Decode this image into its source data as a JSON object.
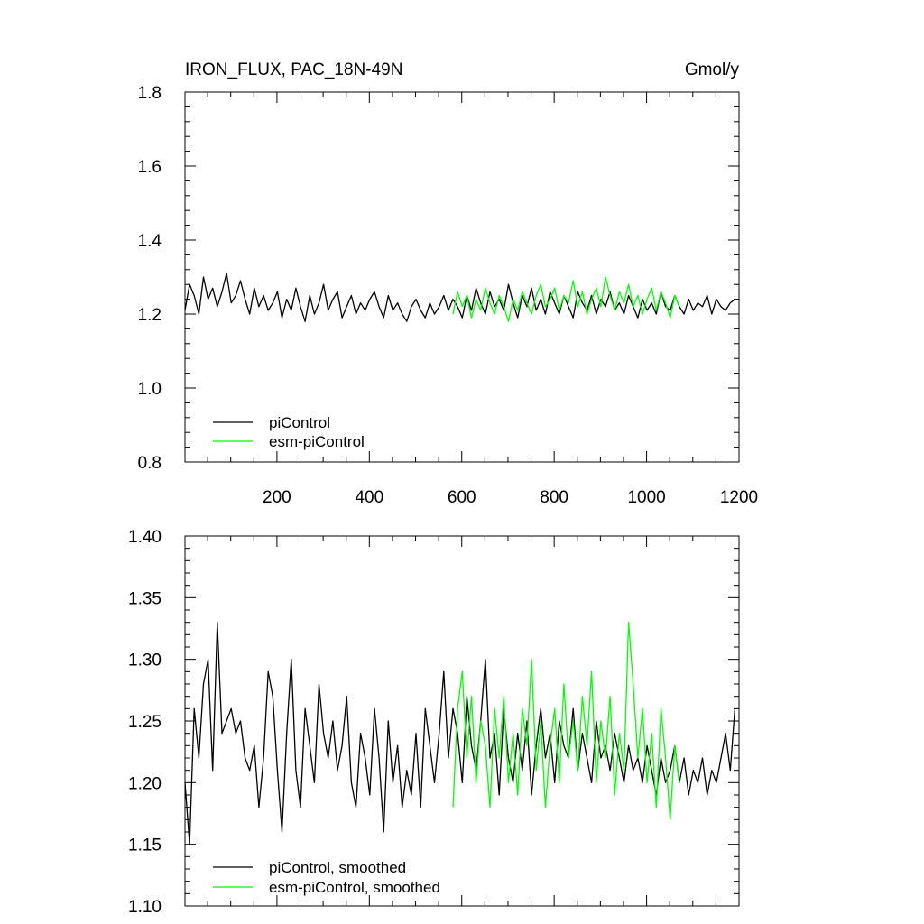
{
  "chart_data": [
    {
      "type": "line",
      "title": "IRON_FLUX, PAC_18N-49N",
      "units": "Gmol/y",
      "xlim": [
        1,
        1200
      ],
      "ylim": [
        0.8,
        1.8
      ],
      "x_ticks": [
        "200",
        "400",
        "600",
        "800",
        "1000",
        "1200"
      ],
      "y_ticks": [
        "0.8",
        "1.0",
        "1.2",
        "1.4",
        "1.6",
        "1.8"
      ],
      "legend_position": "bottom-left",
      "series": [
        {
          "name": "piControl",
          "color": "#000000",
          "x_start": 1,
          "x_step": 10,
          "values": [
            1.21,
            1.28,
            1.25,
            1.2,
            1.3,
            1.24,
            1.27,
            1.22,
            1.26,
            1.31,
            1.23,
            1.25,
            1.29,
            1.24,
            1.2,
            1.27,
            1.22,
            1.25,
            1.21,
            1.23,
            1.26,
            1.19,
            1.24,
            1.21,
            1.27,
            1.22,
            1.18,
            1.25,
            1.2,
            1.23,
            1.28,
            1.21,
            1.24,
            1.26,
            1.19,
            1.22,
            1.25,
            1.2,
            1.23,
            1.21,
            1.24,
            1.26,
            1.22,
            1.19,
            1.25,
            1.21,
            1.23,
            1.2,
            1.18,
            1.22,
            1.24,
            1.21,
            1.19,
            1.23,
            1.2,
            1.22,
            1.25,
            1.21,
            1.24,
            1.22,
            1.19,
            1.25,
            1.21,
            1.27,
            1.23,
            1.2,
            1.26,
            1.22,
            1.24,
            1.21,
            1.28,
            1.23,
            1.19,
            1.25,
            1.22,
            1.27,
            1.21,
            1.24,
            1.2,
            1.26,
            1.23,
            1.2,
            1.25,
            1.22,
            1.19,
            1.26,
            1.23,
            1.21,
            1.25,
            1.2,
            1.24,
            1.22,
            1.26,
            1.21,
            1.23,
            1.2,
            1.25,
            1.22,
            1.19,
            1.24,
            1.21,
            1.23,
            1.2,
            1.26,
            1.22,
            1.21,
            1.25,
            1.22,
            1.2,
            1.24,
            1.21,
            1.23,
            1.22,
            1.25,
            1.2,
            1.24,
            1.22,
            1.21,
            1.23,
            1.24
          ]
        },
        {
          "name": "esm-piControl",
          "color": "#00ff00",
          "x_start": 581,
          "x_step": 10,
          "values": [
            1.2,
            1.26,
            1.22,
            1.25,
            1.19,
            1.24,
            1.21,
            1.27,
            1.23,
            1.2,
            1.25,
            1.22,
            1.18,
            1.24,
            1.21,
            1.26,
            1.23,
            1.2,
            1.25,
            1.28,
            1.22,
            1.24,
            1.27,
            1.21,
            1.25,
            1.23,
            1.29,
            1.22,
            1.26,
            1.2,
            1.24,
            1.27,
            1.22,
            1.3,
            1.25,
            1.21,
            1.26,
            1.23,
            1.28,
            1.22,
            1.25,
            1.2,
            1.24,
            1.27,
            1.21,
            1.26,
            1.23,
            1.19,
            1.25,
            1.22
          ]
        }
      ]
    },
    {
      "type": "line",
      "title": "",
      "xlim": [
        1,
        1200
      ],
      "ylim": [
        1.1,
        1.4
      ],
      "y_ticks": [
        "1.10",
        "1.15",
        "1.20",
        "1.25",
        "1.30",
        "1.35",
        "1.40"
      ],
      "legend_position": "bottom-left",
      "series": [
        {
          "name": "piControl, smoothed",
          "color": "#000000",
          "x_start": 1,
          "x_step": 10,
          "values": [
            1.2,
            1.15,
            1.26,
            1.22,
            1.28,
            1.3,
            1.21,
            1.33,
            1.24,
            1.25,
            1.26,
            1.24,
            1.25,
            1.22,
            1.21,
            1.23,
            1.18,
            1.22,
            1.29,
            1.27,
            1.21,
            1.16,
            1.24,
            1.3,
            1.21,
            1.18,
            1.26,
            1.23,
            1.2,
            1.28,
            1.24,
            1.22,
            1.25,
            1.21,
            1.23,
            1.27,
            1.2,
            1.18,
            1.24,
            1.22,
            1.19,
            1.26,
            1.22,
            1.16,
            1.25,
            1.2,
            1.23,
            1.18,
            1.21,
            1.19,
            1.24,
            1.18,
            1.26,
            1.23,
            1.2,
            1.24,
            1.29,
            1.22,
            1.26,
            1.24,
            1.2,
            1.27,
            1.23,
            1.21,
            1.25,
            1.3,
            1.22,
            1.24,
            1.19,
            1.26,
            1.22,
            1.2,
            1.24,
            1.21,
            1.25,
            1.19,
            1.23,
            1.26,
            1.22,
            1.24,
            1.2,
            1.25,
            1.23,
            1.22,
            1.26,
            1.21,
            1.24,
            1.22,
            1.2,
            1.25,
            1.22,
            1.23,
            1.21,
            1.24,
            1.22,
            1.2,
            1.23,
            1.21,
            1.22,
            1.2,
            1.23,
            1.21,
            1.19,
            1.22,
            1.2,
            1.21,
            1.23,
            1.2,
            1.22,
            1.19,
            1.21,
            1.2,
            1.22,
            1.19,
            1.21,
            1.2,
            1.22,
            1.24,
            1.21,
            1.26
          ]
        },
        {
          "name": "esm-piControl, smoothed",
          "color": "#00ff00",
          "x_start": 581,
          "x_step": 10,
          "values": [
            1.18,
            1.26,
            1.29,
            1.22,
            1.27,
            1.2,
            1.25,
            1.23,
            1.18,
            1.26,
            1.22,
            1.27,
            1.2,
            1.24,
            1.19,
            1.26,
            1.23,
            1.3,
            1.21,
            1.25,
            1.18,
            1.23,
            1.26,
            1.2,
            1.28,
            1.22,
            1.25,
            1.21,
            1.27,
            1.23,
            1.29,
            1.2,
            1.25,
            1.22,
            1.27,
            1.19,
            1.24,
            1.21,
            1.33,
            1.28,
            1.22,
            1.26,
            1.2,
            1.24,
            1.18,
            1.26,
            1.22,
            1.17,
            1.23,
            1.2
          ]
        }
      ]
    }
  ]
}
